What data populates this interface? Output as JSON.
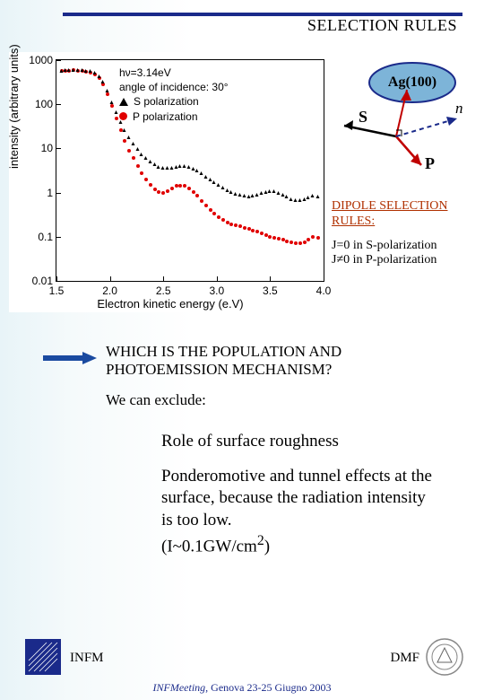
{
  "title": "SELECTION RULES",
  "chart": {
    "type": "scatter-log",
    "ylabel": "intensity (arbitrary units)",
    "xlabel": "Electron kinetic energy (e.V)",
    "xlim": [
      1.5,
      4.0
    ],
    "ylim": [
      0.01,
      1000
    ],
    "xticks": [
      1.5,
      2.0,
      2.5,
      3.0,
      3.5,
      4.0
    ],
    "yticks": [
      0.01,
      0.1,
      1,
      10,
      100,
      1000
    ],
    "ytick_labels": [
      "0.01",
      "0.1",
      "1",
      "10",
      "100",
      "1000"
    ],
    "legend": {
      "line1": "hν=3.14eV",
      "line2": "angle of incidence: 30°",
      "seriesA": "S polarization",
      "seriesB": "P polarization"
    },
    "series_s": {
      "color": "#000000",
      "marker": "triangle",
      "points": [
        [
          1.55,
          580
        ],
        [
          1.58,
          590
        ],
        [
          1.62,
          600
        ],
        [
          1.66,
          605
        ],
        [
          1.7,
          600
        ],
        [
          1.74,
          590
        ],
        [
          1.78,
          580
        ],
        [
          1.82,
          560
        ],
        [
          1.86,
          520
        ],
        [
          1.9,
          440
        ],
        [
          1.94,
          320
        ],
        [
          1.98,
          200
        ],
        [
          2.02,
          110
        ],
        [
          2.06,
          65
        ],
        [
          2.1,
          40
        ],
        [
          2.14,
          26
        ],
        [
          2.18,
          18
        ],
        [
          2.22,
          13
        ],
        [
          2.26,
          9.5
        ],
        [
          2.3,
          7.5
        ],
        [
          2.34,
          6.0
        ],
        [
          2.38,
          5.0
        ],
        [
          2.42,
          4.3
        ],
        [
          2.46,
          3.9
        ],
        [
          2.5,
          3.7
        ],
        [
          2.54,
          3.6
        ],
        [
          2.58,
          3.7
        ],
        [
          2.62,
          3.9
        ],
        [
          2.66,
          4.0
        ],
        [
          2.7,
          4.0
        ],
        [
          2.74,
          3.8
        ],
        [
          2.78,
          3.5
        ],
        [
          2.82,
          3.1
        ],
        [
          2.86,
          2.7
        ],
        [
          2.9,
          2.3
        ],
        [
          2.94,
          2.0
        ],
        [
          2.98,
          1.7
        ],
        [
          3.02,
          1.5
        ],
        [
          3.06,
          1.3
        ],
        [
          3.1,
          1.15
        ],
        [
          3.14,
          1.05
        ],
        [
          3.18,
          0.95
        ],
        [
          3.22,
          0.88
        ],
        [
          3.26,
          0.85
        ],
        [
          3.3,
          0.83
        ],
        [
          3.34,
          0.85
        ],
        [
          3.38,
          0.9
        ],
        [
          3.42,
          0.98
        ],
        [
          3.46,
          1.05
        ],
        [
          3.5,
          1.1
        ],
        [
          3.54,
          1.08
        ],
        [
          3.58,
          1.0
        ],
        [
          3.62,
          0.9
        ],
        [
          3.66,
          0.8
        ],
        [
          3.7,
          0.72
        ],
        [
          3.74,
          0.68
        ],
        [
          3.78,
          0.66
        ],
        [
          3.82,
          0.7
        ],
        [
          3.86,
          0.78
        ],
        [
          3.9,
          0.85
        ],
        [
          3.95,
          0.8
        ]
      ]
    },
    "series_p": {
      "color": "#e00000",
      "marker": "circle",
      "points": [
        [
          1.55,
          560
        ],
        [
          1.58,
          570
        ],
        [
          1.62,
          580
        ],
        [
          1.66,
          585
        ],
        [
          1.7,
          580
        ],
        [
          1.74,
          570
        ],
        [
          1.78,
          555
        ],
        [
          1.82,
          530
        ],
        [
          1.86,
          480
        ],
        [
          1.9,
          400
        ],
        [
          1.94,
          280
        ],
        [
          1.98,
          170
        ],
        [
          2.02,
          90
        ],
        [
          2.06,
          48
        ],
        [
          2.1,
          26
        ],
        [
          2.14,
          15
        ],
        [
          2.18,
          9.0
        ],
        [
          2.22,
          6.0
        ],
        [
          2.26,
          4.0
        ],
        [
          2.3,
          2.8
        ],
        [
          2.34,
          2.0
        ],
        [
          2.38,
          1.5
        ],
        [
          2.42,
          1.2
        ],
        [
          2.46,
          1.05
        ],
        [
          2.5,
          1.0
        ],
        [
          2.54,
          1.1
        ],
        [
          2.58,
          1.25
        ],
        [
          2.62,
          1.4
        ],
        [
          2.66,
          1.45
        ],
        [
          2.7,
          1.4
        ],
        [
          2.74,
          1.25
        ],
        [
          2.78,
          1.05
        ],
        [
          2.82,
          0.85
        ],
        [
          2.86,
          0.65
        ],
        [
          2.9,
          0.5
        ],
        [
          2.94,
          0.4
        ],
        [
          2.98,
          0.33
        ],
        [
          3.02,
          0.28
        ],
        [
          3.06,
          0.24
        ],
        [
          3.1,
          0.21
        ],
        [
          3.14,
          0.19
        ],
        [
          3.18,
          0.18
        ],
        [
          3.22,
          0.17
        ],
        [
          3.26,
          0.16
        ],
        [
          3.3,
          0.15
        ],
        [
          3.34,
          0.14
        ],
        [
          3.38,
          0.13
        ],
        [
          3.42,
          0.12
        ],
        [
          3.46,
          0.11
        ],
        [
          3.5,
          0.1
        ],
        [
          3.54,
          0.095
        ],
        [
          3.58,
          0.09
        ],
        [
          3.62,
          0.085
        ],
        [
          3.66,
          0.08
        ],
        [
          3.7,
          0.075
        ],
        [
          3.74,
          0.072
        ],
        [
          3.78,
          0.07
        ],
        [
          3.82,
          0.075
        ],
        [
          3.86,
          0.085
        ],
        [
          3.9,
          0.1
        ],
        [
          3.95,
          0.095
        ]
      ]
    }
  },
  "diagram": {
    "surface_label": "Ag(100)",
    "s_label": "S",
    "p_label": "P",
    "n_label": "n",
    "ellipse_fill": "#7db4d8",
    "ellipse_stroke": "#1a2a8a",
    "s_color": "#000000",
    "p_color": "#c00000",
    "n_color": "#1a2a8a"
  },
  "dipole": {
    "heading": "DIPOLE SELECTION RULES:",
    "rule1": "J=0   in S-polarization",
    "rule2": "J≠0   in P-polarization"
  },
  "question": "WHICH IS THE POPULATION AND PHOTOEMISSION MECHANISM?",
  "exclude": "We can exclude:",
  "conc1": "Role of surface roughness",
  "conc2_a": "Ponderomotive and tunnel effects at the surface, because the radiation intensity is too low.",
  "conc2_b": "(I~0.1GW/cm",
  "conc2_c": ")",
  "footer": {
    "left_org": "INFM",
    "right_org": "DMF",
    "meeting_i": "INFMeeting",
    "meeting_rest": ", Genova 23-25 Giugno 2003"
  },
  "colors": {
    "accent": "#1a2a8a",
    "arrow": "#1a4aa0"
  }
}
